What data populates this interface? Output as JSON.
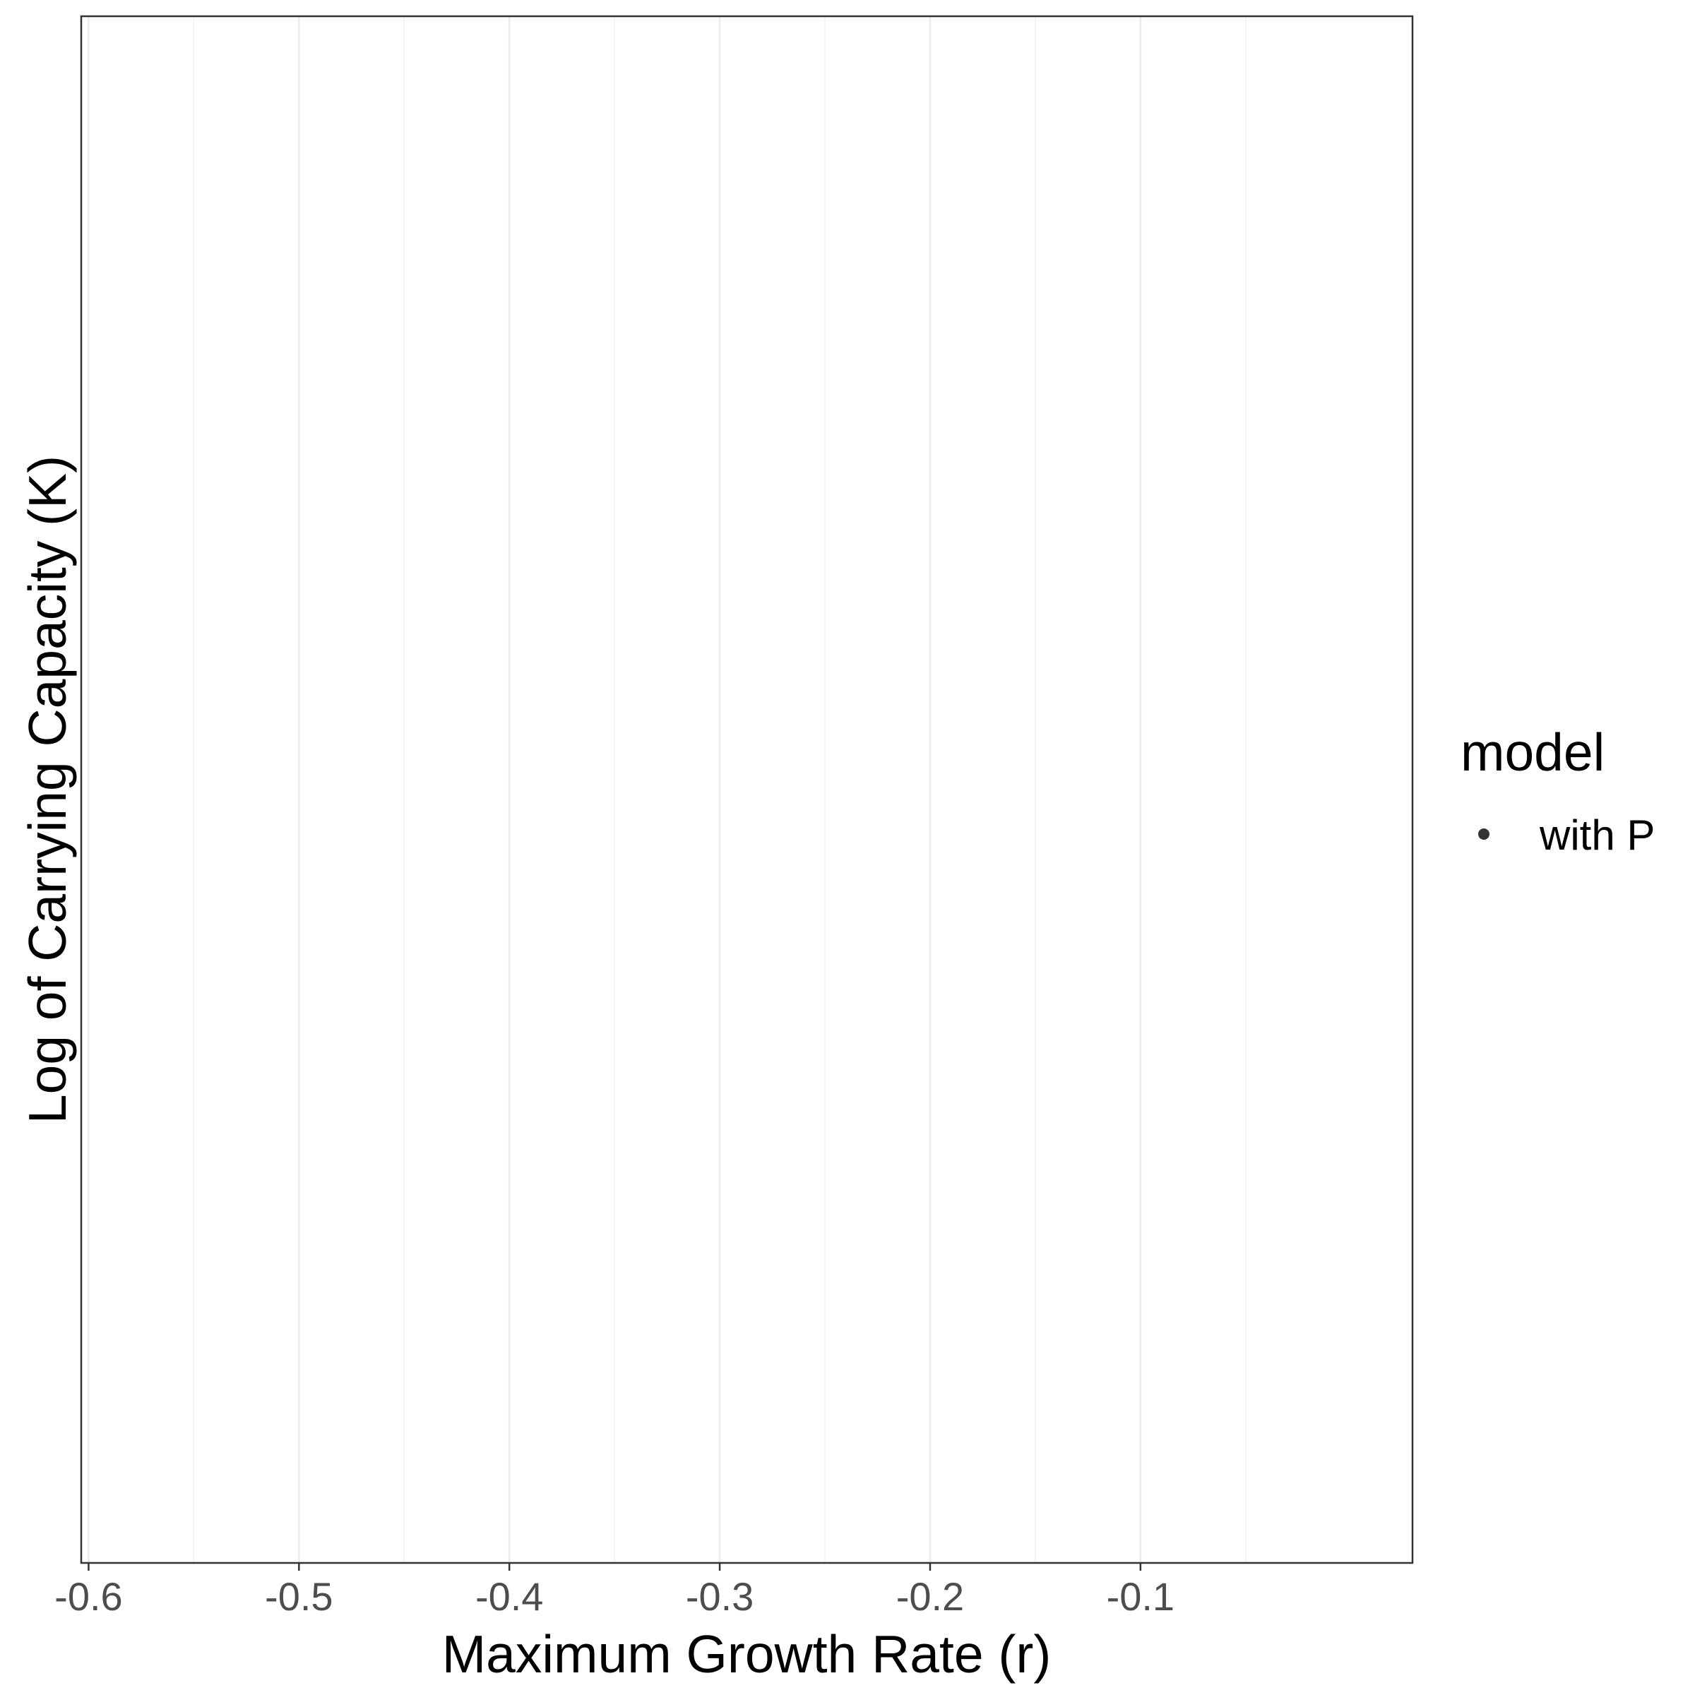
{
  "chart_data": {
    "type": "scatter",
    "title": "",
    "xlabel": "Maximum Growth Rate (r)",
    "ylabel": "Log of Carrying Capacity (K)",
    "xlim": [
      -0.6035,
      0.0293
    ],
    "x_ticks": [
      -0.6,
      -0.5,
      -0.4,
      -0.3,
      -0.2,
      -0.1
    ],
    "x_tick_labels": [
      "-0.6",
      "-0.5",
      "-0.4",
      "-0.3",
      "-0.2",
      "-0.1"
    ],
    "x_minor_ticks": [
      -0.55,
      -0.45,
      -0.35,
      -0.25,
      -0.15,
      -0.05
    ],
    "y_ticks": [],
    "grid": true,
    "legend": {
      "title": "model",
      "position": "right",
      "entries": [
        {
          "label": "with P",
          "color": "#333333",
          "shape": "circle"
        }
      ]
    },
    "series": [
      {
        "name": "with P",
        "x": [],
        "y": []
      }
    ]
  },
  "colors": {
    "background": "#ffffff",
    "panel_border": "#333333",
    "grid_major": "#ebebeb",
    "grid_minor": "#f2f2f2",
    "tick_label": "#4d4d4d",
    "point": "#333333"
  }
}
